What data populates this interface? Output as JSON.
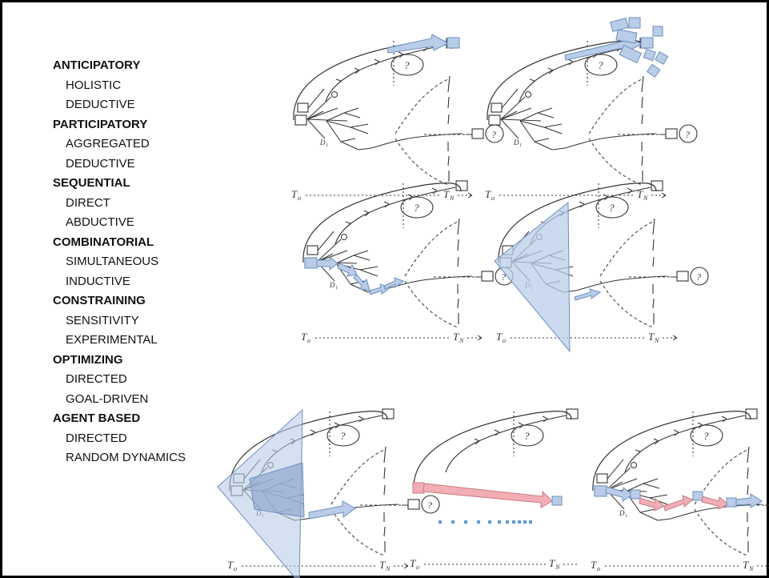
{
  "legend": [
    {
      "name": "ANTICIPATORY",
      "sub": [
        "HOLISTIC",
        "DEDUCTIVE"
      ]
    },
    {
      "name": "PARTICIPATORY",
      "sub": [
        "AGGREGATED",
        "DEDUCTIVE"
      ]
    },
    {
      "name": "SEQUENTIAL",
      "sub": [
        "DIRECT",
        "ABDUCTIVE"
      ]
    },
    {
      "name": "COMBINATORIAL",
      "sub": [
        "SIMULTANEOUS",
        "INDUCTIVE"
      ]
    },
    {
      "name": "CONSTRAINING",
      "sub": [
        "SENSITIVITY",
        "EXPERIMENTAL"
      ]
    },
    {
      "name": "OPTIMIZING",
      "sub": [
        "DIRECTED",
        "GOAL-DRIVEN"
      ]
    },
    {
      "name": "AGENT BASED",
      "sub": [
        "DIRECTED",
        "RANDOM DYNAMICS"
      ]
    }
  ],
  "sketch_labels": {
    "question": "?",
    "t_start": "T",
    "t_start_sub": "o",
    "t_end": "T",
    "t_end_sub": "N",
    "branch_label": "D",
    "branch_sub": "1"
  },
  "colors": {
    "blue_fill": "#b9cde8",
    "blue_stroke": "#6d8fbf",
    "red_fill": "#f2aeb4",
    "red_stroke": "#c97a82",
    "ink": "#333333",
    "dots": "#5b9bd5"
  },
  "panel_variants": [
    "anticipatory",
    "participatory",
    "sequential",
    "combinatorial",
    "constraining",
    "optimizing",
    "agent-based"
  ]
}
